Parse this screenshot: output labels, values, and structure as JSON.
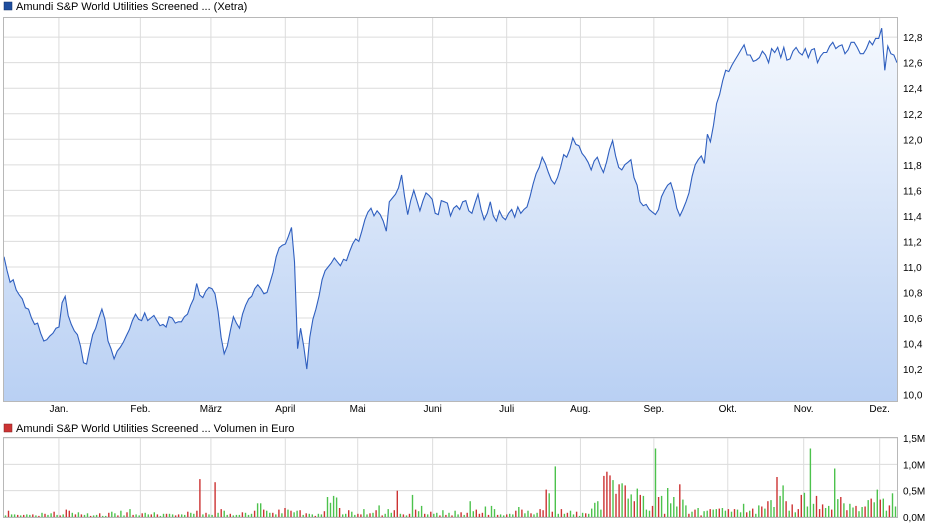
{
  "colors": {
    "price_line": "#2f5fbf",
    "area_top": "#f4f8fe",
    "area_bottom": "#b9d0f3",
    "vol_up": "#4cc24c",
    "vol_down": "#cc3333",
    "grid": "#dcdcdc"
  },
  "chart_data": [
    {
      "type": "area",
      "legend": "Amundi S&P World Utilities Screened ... (Xetra)",
      "legend_color": "#1f4e9e",
      "ylim": [
        9.95,
        12.95
      ],
      "y_ticks": [
        "10,0",
        "10,2",
        "10,4",
        "10,6",
        "10,8",
        "11,0",
        "11,2",
        "11,4",
        "11,6",
        "11,8",
        "12,0",
        "12,2",
        "12,4",
        "12,6",
        "12,8"
      ],
      "y_tick_values": [
        10.0,
        10.2,
        10.4,
        10.6,
        10.8,
        11.0,
        11.2,
        11.4,
        11.6,
        11.8,
        12.0,
        12.2,
        12.4,
        12.6,
        12.8
      ],
      "x_labels": [
        "Jan.",
        "Feb.",
        "März",
        "April",
        "Mai",
        "Juni",
        "Juli",
        "Aug.",
        "Sep.",
        "Okt.",
        "Nov.",
        "Dez."
      ],
      "x_label_positions": [
        0.0615,
        0.1527,
        0.2317,
        0.315,
        0.3961,
        0.48,
        0.5629,
        0.6455,
        0.7277,
        0.8105,
        0.8955,
        0.9806
      ],
      "grid": true,
      "values": [
        11.08,
        10.97,
        10.88,
        10.9,
        10.82,
        10.78,
        10.75,
        10.68,
        10.67,
        10.6,
        10.55,
        10.56,
        10.48,
        10.42,
        10.43,
        10.46,
        10.48,
        10.52,
        10.53,
        10.72,
        10.77,
        10.62,
        10.55,
        10.5,
        10.47,
        10.38,
        10.25,
        10.24,
        10.36,
        10.47,
        10.52,
        10.6,
        10.67,
        10.59,
        10.42,
        10.36,
        10.28,
        10.34,
        10.37,
        10.41,
        10.46,
        10.51,
        10.58,
        10.63,
        10.59,
        10.58,
        10.64,
        10.58,
        10.6,
        10.62,
        10.58,
        10.54,
        10.55,
        10.53,
        10.61,
        10.6,
        10.56,
        10.57,
        10.57,
        10.61,
        10.63,
        10.7,
        10.75,
        10.87,
        10.78,
        10.76,
        10.81,
        10.84,
        10.83,
        10.79,
        10.65,
        10.45,
        10.32,
        10.38,
        10.5,
        10.61,
        10.56,
        10.52,
        10.63,
        10.7,
        10.75,
        10.77,
        10.83,
        10.86,
        10.83,
        10.79,
        10.8,
        10.88,
        10.96,
        11.08,
        11.15,
        11.17,
        11.18,
        11.24,
        11.31,
        11.04,
        10.36,
        10.52,
        10.38,
        10.2,
        10.45,
        10.59,
        10.67,
        10.77,
        10.9,
        10.97,
        11.0,
        11.03,
        11.07,
        11.04,
        11.01,
        11.06,
        11.05,
        11.12,
        11.18,
        11.22,
        11.2,
        11.28,
        11.37,
        11.43,
        11.46,
        11.4,
        11.44,
        11.41,
        11.36,
        11.28,
        11.51,
        11.54,
        11.57,
        11.62,
        11.72,
        11.55,
        11.41,
        11.52,
        11.6,
        11.52,
        11.44,
        11.52,
        11.58,
        11.56,
        11.53,
        11.42,
        11.41,
        11.52,
        11.51,
        11.5,
        11.4,
        11.46,
        11.48,
        11.45,
        11.51,
        11.52,
        11.44,
        11.42,
        11.5,
        11.57,
        11.45,
        11.37,
        11.42,
        11.51,
        11.4,
        11.36,
        11.44,
        11.39,
        11.37,
        11.42,
        11.45,
        11.39,
        11.47,
        11.42,
        11.45,
        11.47,
        11.55,
        11.65,
        11.73,
        11.78,
        11.86,
        11.81,
        11.74,
        11.68,
        11.65,
        11.7,
        11.78,
        11.88,
        11.86,
        11.92,
        12.01,
        11.96,
        11.95,
        11.89,
        11.86,
        11.82,
        11.76,
        11.83,
        11.86,
        11.79,
        11.74,
        11.82,
        11.92,
        11.99,
        11.87,
        11.78,
        11.76,
        11.8,
        11.82,
        11.84,
        11.7,
        11.64,
        11.51,
        11.48,
        11.49,
        11.45,
        11.43,
        11.41,
        11.45,
        11.55,
        11.6,
        11.64,
        11.66,
        11.58,
        11.46,
        11.4,
        11.45,
        11.51,
        11.58,
        11.71,
        11.8,
        11.84,
        11.87,
        11.81,
        12.04,
        11.98,
        12.11,
        12.28,
        12.35,
        12.46,
        12.54,
        12.53,
        12.58,
        12.62,
        12.66,
        12.7,
        12.74,
        12.66,
        12.66,
        12.61,
        12.62,
        12.64,
        12.69,
        12.66,
        12.6,
        12.71,
        12.68,
        12.72,
        12.64,
        12.72,
        12.62,
        12.63,
        12.69,
        12.72,
        12.68,
        12.66,
        12.71,
        12.64,
        12.7,
        12.71,
        12.6,
        12.65,
        12.68,
        12.68,
        12.73,
        12.76,
        12.71,
        12.73,
        12.74,
        12.67,
        12.7,
        12.76,
        12.76,
        12.72,
        12.67,
        12.67,
        12.71,
        12.77,
        12.74,
        12.79,
        12.79,
        12.87,
        12.54,
        12.73,
        12.67,
        12.66,
        12.6
      ]
    },
    {
      "type": "bar",
      "legend": "Amundi S&P World Utilities Screened ... Volumen in Euro",
      "legend_color": "#cc3333",
      "ylim": [
        0,
        1.5
      ],
      "y_ticks": [
        "0,0M",
        "0,5M",
        "1,0M",
        "1,5M"
      ],
      "y_tick_values": [
        0,
        0.5,
        1.0,
        1.5
      ],
      "grid": true,
      "values": [
        0.03,
        0.12,
        0.05,
        0.05,
        0.04,
        0.03,
        0.04,
        0.05,
        0.04,
        0.05,
        0.03,
        0.02,
        0.08,
        0.06,
        0.04,
        0.07,
        0.1,
        0.04,
        0.03,
        0.05,
        0.14,
        0.12,
        0.08,
        0.05,
        0.09,
        0.05,
        0.04,
        0.07,
        0.02,
        0.03,
        0.04,
        0.07,
        0.02,
        0.02,
        0.08,
        0.1,
        0.07,
        0.03,
        0.12,
        0.03,
        0.09,
        0.15,
        0.04,
        0.05,
        0.03,
        0.07,
        0.08,
        0.05,
        0.05,
        0.09,
        0.05,
        0.02,
        0.06,
        0.06,
        0.06,
        0.05,
        0.03,
        0.05,
        0.05,
        0.04,
        0.1,
        0.08,
        0.06,
        0.12,
        0.72,
        0.05,
        0.08,
        0.05,
        0.04,
        0.66,
        0.08,
        0.15,
        0.12,
        0.04,
        0.06,
        0.03,
        0.04,
        0.04,
        0.09,
        0.08,
        0.04,
        0.06,
        0.12,
        0.26,
        0.26,
        0.14,
        0.12,
        0.08,
        0.08,
        0.05,
        0.14,
        0.07,
        0.17,
        0.14,
        0.12,
        0.09,
        0.12,
        0.13,
        0.04,
        0.07,
        0.06,
        0.05,
        0.02,
        0.06,
        0.05,
        0.11,
        0.38,
        0.27,
        0.4,
        0.37,
        0.17,
        0.05,
        0.06,
        0.13,
        0.1,
        0.04,
        0.06,
        0.05,
        0.15,
        0.05,
        0.07,
        0.08,
        0.13,
        0.22,
        0.03,
        0.06,
        0.15,
        0.08,
        0.13,
        0.5,
        0.06,
        0.05,
        0.03,
        0.06,
        0.42,
        0.14,
        0.11,
        0.21,
        0.06,
        0.05,
        0.1,
        0.06,
        0.08,
        0.03,
        0.13,
        0.04,
        0.08,
        0.03,
        0.12,
        0.05,
        0.09,
        0.04,
        0.08,
        0.3,
        0.11,
        0.14,
        0.06,
        0.08,
        0.2,
        0.04,
        0.21,
        0.15,
        0.04,
        0.05,
        0.03,
        0.05,
        0.06,
        0.05,
        0.12,
        0.19,
        0.14,
        0.07,
        0.12,
        0.07,
        0.05,
        0.08,
        0.15,
        0.13,
        0.52,
        0.45,
        0.1,
        0.96,
        0.06,
        0.15,
        0.06,
        0.08,
        0.12,
        0.05,
        0.1,
        0.02,
        0.08,
        0.07,
        0.06,
        0.16,
        0.27,
        0.3,
        0.14,
        0.78,
        0.86,
        0.79,
        0.7,
        0.44,
        0.62,
        0.64,
        0.6,
        0.35,
        0.43,
        0.3,
        0.54,
        0.42,
        0.4,
        0.14,
        0.12,
        0.21,
        1.3,
        0.38,
        0.4,
        0.06,
        0.55,
        0.26,
        0.38,
        0.2,
        0.62,
        0.33,
        0.22,
        0.06,
        0.1,
        0.14,
        0.17,
        0.03,
        0.11,
        0.12,
        0.15,
        0.14,
        0.15,
        0.16,
        0.17,
        0.12,
        0.15,
        0.1,
        0.15,
        0.14,
        0.09,
        0.25,
        0.09,
        0.12,
        0.16,
        0.06,
        0.22,
        0.2,
        0.16,
        0.3,
        0.32,
        0.19,
        0.76,
        0.4,
        0.6,
        0.3,
        0.12,
        0.24,
        0.09,
        0.15,
        0.42,
        0.46,
        0.2,
        1.3,
        0.25,
        0.4,
        0.15,
        0.24,
        0.17,
        0.21,
        0.14,
        0.92,
        0.34,
        0.38,
        0.26,
        0.13,
        0.25,
        0.18,
        0.21,
        0.11,
        0.19,
        0.2,
        0.32,
        0.35,
        0.28,
        0.52,
        0.33,
        0.35,
        0.12,
        0.22,
        0.45,
        0.2
      ],
      "up": [
        1,
        0,
        1,
        1,
        0,
        1,
        0,
        1,
        1,
        0,
        1,
        0,
        1,
        0,
        1,
        1,
        0,
        1,
        0,
        1,
        0,
        0,
        1,
        0,
        1,
        0,
        1,
        1,
        0,
        1,
        1,
        0,
        1,
        1,
        0,
        1,
        1,
        0,
        1,
        1,
        0,
        1,
        0,
        1,
        1,
        0,
        1,
        1,
        0,
        1,
        0,
        1,
        1,
        0,
        1,
        1,
        0,
        0,
        1,
        1,
        0,
        1,
        1,
        0,
        0,
        1,
        0,
        1,
        1,
        0,
        1,
        0,
        1,
        1,
        0,
        1,
        1,
        1,
        0,
        1,
        1,
        1,
        0,
        1,
        1,
        0,
        1,
        1,
        0,
        1,
        0,
        1,
        0,
        1,
        0,
        1,
        1,
        0,
        1,
        0,
        1,
        1,
        0,
        1,
        1,
        0,
        1,
        1,
        1,
        1,
        0,
        1,
        1,
        0,
        1,
        1,
        0,
        0,
        1,
        1,
        0,
        1,
        0,
        1,
        0,
        1,
        1,
        1,
        0,
        0,
        1,
        0,
        1,
        0,
        1,
        0,
        1,
        1,
        0,
        1,
        0,
        1,
        1,
        0,
        1,
        0,
        1,
        0,
        1,
        1,
        0,
        1,
        0,
        1,
        1,
        0,
        0,
        0,
        1,
        0,
        1,
        1,
        0,
        1,
        1,
        0,
        1,
        1,
        0,
        1,
        0,
        1,
        1,
        0,
        1,
        1,
        0,
        0,
        0,
        1,
        0,
        1,
        1,
        0,
        1,
        0,
        1,
        1,
        0,
        1,
        1,
        0,
        1,
        1,
        1,
        1,
        1,
        0,
        0,
        0,
        1,
        0,
        0,
        1,
        0,
        1,
        1,
        0,
        1,
        0,
        1,
        1,
        1,
        0,
        1,
        0,
        1,
        0,
        1,
        1,
        1,
        1,
        0,
        1,
        1,
        0,
        1,
        0,
        1,
        0,
        1,
        1,
        0,
        1,
        1,
        0,
        1,
        1,
        0,
        1,
        0,
        1,
        1,
        1,
        0,
        1,
        0,
        1,
        1,
        0,
        1,
        0,
        1,
        1,
        0,
        1,
        1,
        0,
        1,
        0,
        1,
        0,
        0,
        1,
        1,
        1,
        1,
        0,
        0,
        0,
        1,
        1,
        0,
        1,
        1,
        0,
        1,
        0,
        1,
        1,
        0,
        1,
        1,
        0,
        1,
        0,
        1,
        1,
        0,
        1,
        1,
        0,
        1,
        1,
        0,
        0,
        1,
        0,
        0
      ]
    }
  ]
}
